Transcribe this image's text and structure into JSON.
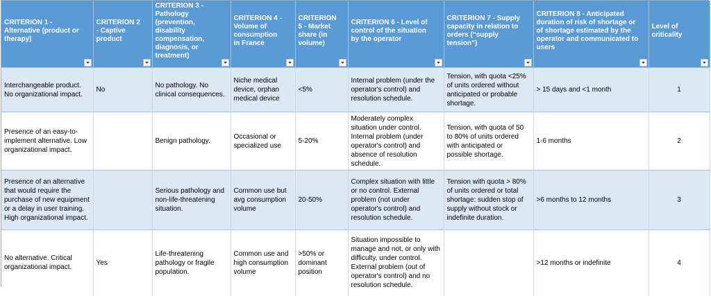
{
  "table": {
    "headers": [
      "CRITERION 1 - Alternative (product or therapy)",
      "CRITERION 2 - Captive product",
      "CRITERION 3 - Pathology (prevention, disability compensation, diagnosis, or treatment)",
      "CRITERION 4 - Volume of consumption in France",
      "CRITERION 5 - Market share (in volume)",
      "CRITERION 6 - Level of control of the situation by the operator",
      "CRITERION 7 - Supply capacity in relation to orders (“supply tension”)",
      "CRITERION 8 - Anticipated duration of risk of shortage or of shortage estimated by the operator and communicated to users",
      "Level of criticality"
    ],
    "rows": [
      [
        "Interchangeable product. No organizational impact.",
        "No",
        "No pathology. No clinical consequences.",
        "Niche medical device,  orphan medical device",
        "<5%",
        "Internal problem (under the operator's control) and resolution schedule.",
        "Tension, with quota <25% of units ordered without anticipated or probable shortage.",
        "> 15 days and <1 month",
        "1"
      ],
      [
        "Presence of an easy-to-implement alternative. Low organizational impact.",
        null,
        "Benign pathology.",
        "Occasional or specialized use",
        "5-20%",
        "Moderately complex situation under control. Internal problem (under operator's control) and absence of resolution schedule.",
        "Tension, with quota of 50 to 80% of units ordered with anticipated or possible shortage.",
        "1-6 months",
        "2"
      ],
      [
        "Presence of an alternative that would require the purchase of new equipment or a delay in user training. High organizational impact.",
        null,
        "Serious pathology and non-life-threatening situation.",
        "Common use but avg consumption volume",
        "20-50%",
        "Complex situation with little or no control. External problem (not under operator's control) and resolution schedule.",
        "Tension with quota > 80% of units ordered or total shortage: sudden stop of supply without stock or indefinite duration.",
        ">6 months to 12 months",
        "3"
      ],
      [
        "No alternative. Critical organizational impact.",
        "Yes",
        "Life-threatening pathology or fragile population.",
        "Common use and high consumption volume",
        ">50% or dominant position",
        "Situation impossible to manage and not, or only with difficulty, under control. External problem (out of operator's control) and no resolution schedule.",
        null,
        ">12 months or indefinite",
        "4"
      ]
    ]
  }
}
